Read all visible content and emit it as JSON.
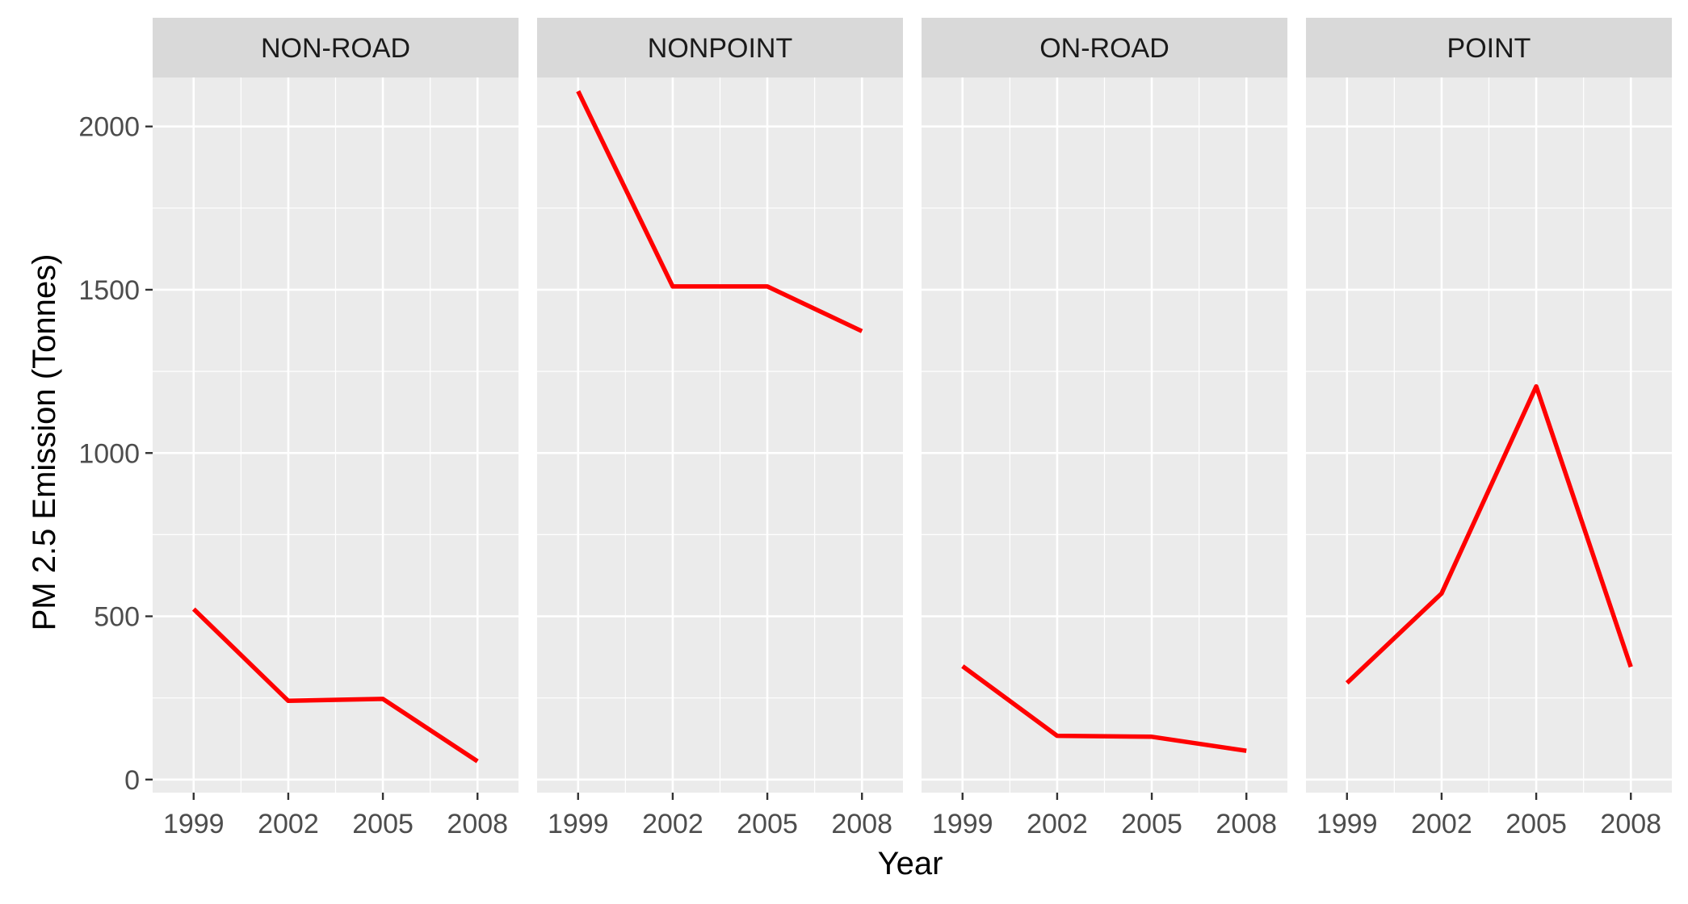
{
  "chart_data": {
    "type": "line",
    "facets": [
      "NON-ROAD",
      "NONPOINT",
      "ON-ROAD",
      "POINT"
    ],
    "x": [
      1999,
      2002,
      2005,
      2008
    ],
    "x_tick_labels": [
      "1999",
      "2002",
      "2005",
      "2008"
    ],
    "series": [
      {
        "facet": "NON-ROAD",
        "values": [
          522,
          241,
          247,
          56
        ]
      },
      {
        "facet": "NONPOINT",
        "values": [
          2108,
          1510,
          1510,
          1373
        ]
      },
      {
        "facet": "ON-ROAD",
        "values": [
          347,
          134,
          131,
          88
        ]
      },
      {
        "facet": "POINT",
        "values": [
          296,
          570,
          1204,
          345
        ]
      }
    ],
    "xlabel": "Year",
    "ylabel": "PM 2.5 Emission (Tonnes)",
    "y_ticks": [
      0,
      500,
      1000,
      1500,
      2000
    ],
    "y_tick_labels": [
      "0",
      "500",
      "1000",
      "1500",
      "2000"
    ],
    "xlim": [
      1997.7,
      2009.3
    ],
    "ylim": [
      -40,
      2150
    ],
    "grid": true,
    "legend": "none",
    "colors": {
      "line": "#ff0000",
      "panel_background": "#ebebeb",
      "strip_background": "#d9d9d9",
      "grid": "#ffffff"
    }
  }
}
